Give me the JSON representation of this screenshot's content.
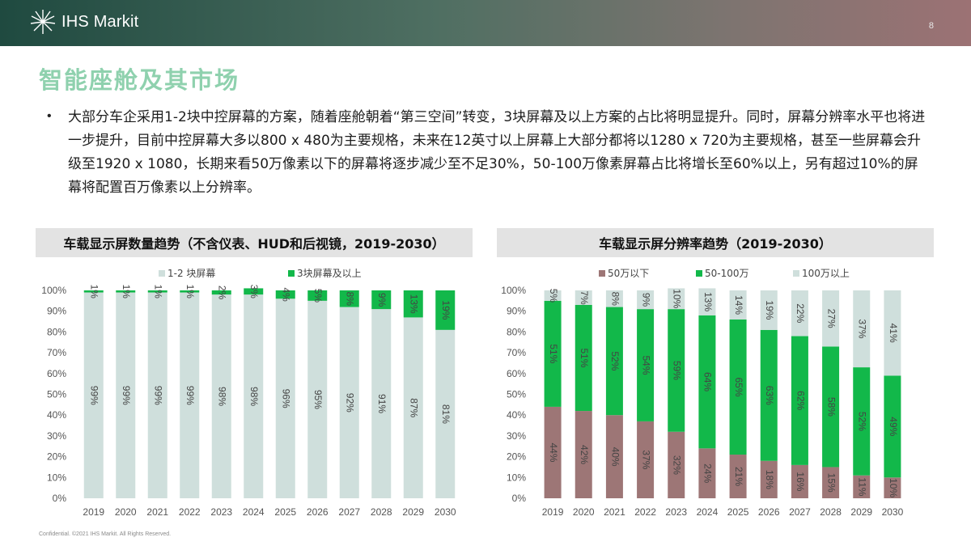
{
  "header": {
    "logo_text": "IHS Markit",
    "page_number": "8"
  },
  "page_title": "智能座舱及其市场",
  "bullet_text": "大部分车企采用1-2块中控屏幕的方案，随着座舱朝着“第三空间”转变，3块屏幕及以上方案的占比将明显提升。同时，屏幕分辨率水平也将进一步提升，目前中控屏幕大多以800 x 480为主要规格，未来在12英寸以上屏幕上大部分都将以1280 x 720为主要规格，甚至一些屏幕会升级至1920 x 1080，长期来看50万像素以下的屏幕将逐步减少至不足30%，50-100万像素屏幕占比将增长至60%以上，另有超过10%的屏幕将配置百万像素以上分辨率。",
  "chart_data": [
    {
      "type": "bar",
      "stacked": true,
      "title": "车载显示屏数量趋势（不含仪表、HUD和后视镜，2019-2030）",
      "categories": [
        "2019",
        "2020",
        "2021",
        "2022",
        "2023",
        "2024",
        "2025",
        "2026",
        "2027",
        "2028",
        "2029",
        "2030"
      ],
      "series": [
        {
          "name": "1-2 块屏幕",
          "color": "#cfdfdc",
          "values": [
            99,
            99,
            99,
            99,
            98,
            98,
            96,
            95,
            92,
            91,
            87,
            81
          ]
        },
        {
          "name": "3块屏幕及以上",
          "color": "#12b84a",
          "values": [
            1,
            1,
            1,
            1,
            2,
            3,
            4,
            5,
            8,
            9,
            13,
            19
          ]
        }
      ],
      "ylim": [
        0,
        100
      ],
      "yticks": [
        "0%",
        "10%",
        "20%",
        "30%",
        "40%",
        "50%",
        "60%",
        "70%",
        "80%",
        "90%",
        "100%"
      ],
      "legend": "top-center",
      "grid": false
    },
    {
      "type": "bar",
      "stacked": true,
      "title": "车载显示屏分辨率趋势（2019-2030）",
      "categories": [
        "2019",
        "2020",
        "2021",
        "2022",
        "2023",
        "2024",
        "2025",
        "2026",
        "2027",
        "2028",
        "2029",
        "2030"
      ],
      "series": [
        {
          "name": "50万以下",
          "color": "#9d7676",
          "values": [
            44,
            42,
            40,
            37,
            32,
            24,
            21,
            18,
            16,
            15,
            11,
            10
          ]
        },
        {
          "name": "50-100万",
          "color": "#12b84a",
          "values": [
            51,
            51,
            52,
            54,
            59,
            64,
            65,
            63,
            62,
            58,
            52,
            49
          ]
        },
        {
          "name": "100万以上",
          "color": "#cfdfdc",
          "values": [
            5,
            7,
            8,
            9,
            10,
            13,
            14,
            19,
            22,
            27,
            37,
            41
          ]
        }
      ],
      "ylim": [
        0,
        100
      ],
      "yticks": [
        "0%",
        "10%",
        "20%",
        "30%",
        "40%",
        "50%",
        "60%",
        "70%",
        "80%",
        "90%",
        "100%"
      ],
      "legend": "top-center",
      "grid": false
    }
  ],
  "footer_text": "Confidential. ©2021 IHS Markit. All Rights Reserved."
}
